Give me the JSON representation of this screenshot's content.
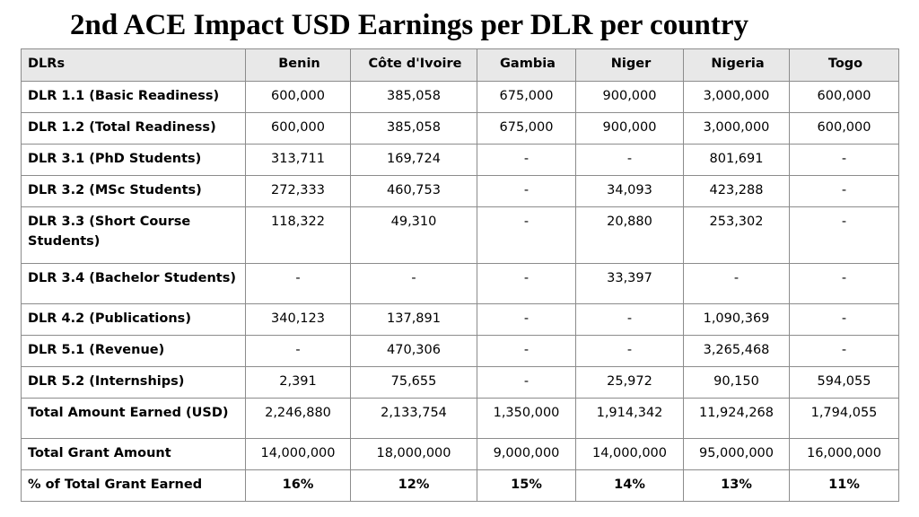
{
  "title": "2nd ACE Impact USD Earnings per DLR per country",
  "table": {
    "headers": [
      "DLRs",
      "Benin",
      "Côte d'Ivoire",
      "Gambia",
      "Niger",
      "Nigeria",
      "Togo"
    ],
    "rows": [
      {
        "label": "DLR 1.1 (Basic Readiness)",
        "values": [
          "600,000",
          "385,058",
          "675,000",
          "900,000",
          "3,000,000",
          "600,000"
        ]
      },
      {
        "label": "DLR 1.2 (Total Readiness)",
        "values": [
          "600,000",
          "385,058",
          "675,000",
          "900,000",
          "3,000,000",
          "600,000"
        ]
      },
      {
        "label": "DLR 3.1 (PhD Students)",
        "values": [
          "313,711",
          "169,724",
          "-",
          "-",
          "801,691",
          "-"
        ]
      },
      {
        "label": "DLR 3.2 (MSc Students)",
        "values": [
          "272,333",
          "460,753",
          "-",
          "34,093",
          "423,288",
          "-"
        ]
      },
      {
        "label": "DLR 3.3 (Short Course Students)",
        "values": [
          "118,322",
          "49,310",
          "-",
          "20,880",
          "253,302",
          "-"
        ]
      },
      {
        "label": "DLR 3.4 (Bachelor Students)",
        "values": [
          "-",
          "-",
          "-",
          "33,397",
          "-",
          "-"
        ]
      },
      {
        "label": "DLR 4.2 (Publications)",
        "values": [
          "340,123",
          "137,891",
          "-",
          "-",
          "1,090,369",
          "-"
        ]
      },
      {
        "label": "DLR 5.1 (Revenue)",
        "values": [
          "-",
          "470,306",
          "-",
          "-",
          "3,265,468",
          "-"
        ]
      },
      {
        "label": "DLR 5.2 (Internships)",
        "values": [
          "2,391",
          "75,655",
          "-",
          "25,972",
          "90,150",
          "594,055"
        ]
      },
      {
        "label": "Total Amount Earned (USD)",
        "values": [
          "2,246,880",
          "2,133,754",
          "1,350,000",
          "1,914,342",
          "11,924,268",
          "1,794,055"
        ]
      },
      {
        "label": "Total Grant Amount",
        "values": [
          "14,000,000",
          "18,000,000",
          "9,000,000",
          "14,000,000",
          "95,000,000",
          "16,000,000"
        ]
      },
      {
        "label": "% of Total Grant Earned",
        "values": [
          "16%",
          "12%",
          "15%",
          "14%",
          "13%",
          "11%"
        ]
      }
    ]
  }
}
